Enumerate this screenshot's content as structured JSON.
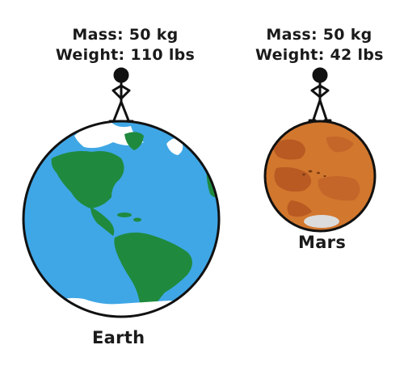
{
  "earth": {
    "name": "Earth",
    "mass_text": "Mass: 50 kg",
    "weight_text": "Weight: 110  lbs",
    "ocean_color": "#3fa7e6",
    "land_color": "#1f8a3e"
  },
  "mars": {
    "name": "Mars",
    "mass_text": "Mass: 50 kg",
    "weight_text": "Weight: 42 lbs",
    "surface_color": "#d2772e",
    "dark_color": "#b85a22",
    "ice_color": "#dcdcdc"
  },
  "icons": {
    "person": "stick-figure-icon",
    "earth": "earth-globe-icon",
    "mars": "mars-planet-icon"
  }
}
